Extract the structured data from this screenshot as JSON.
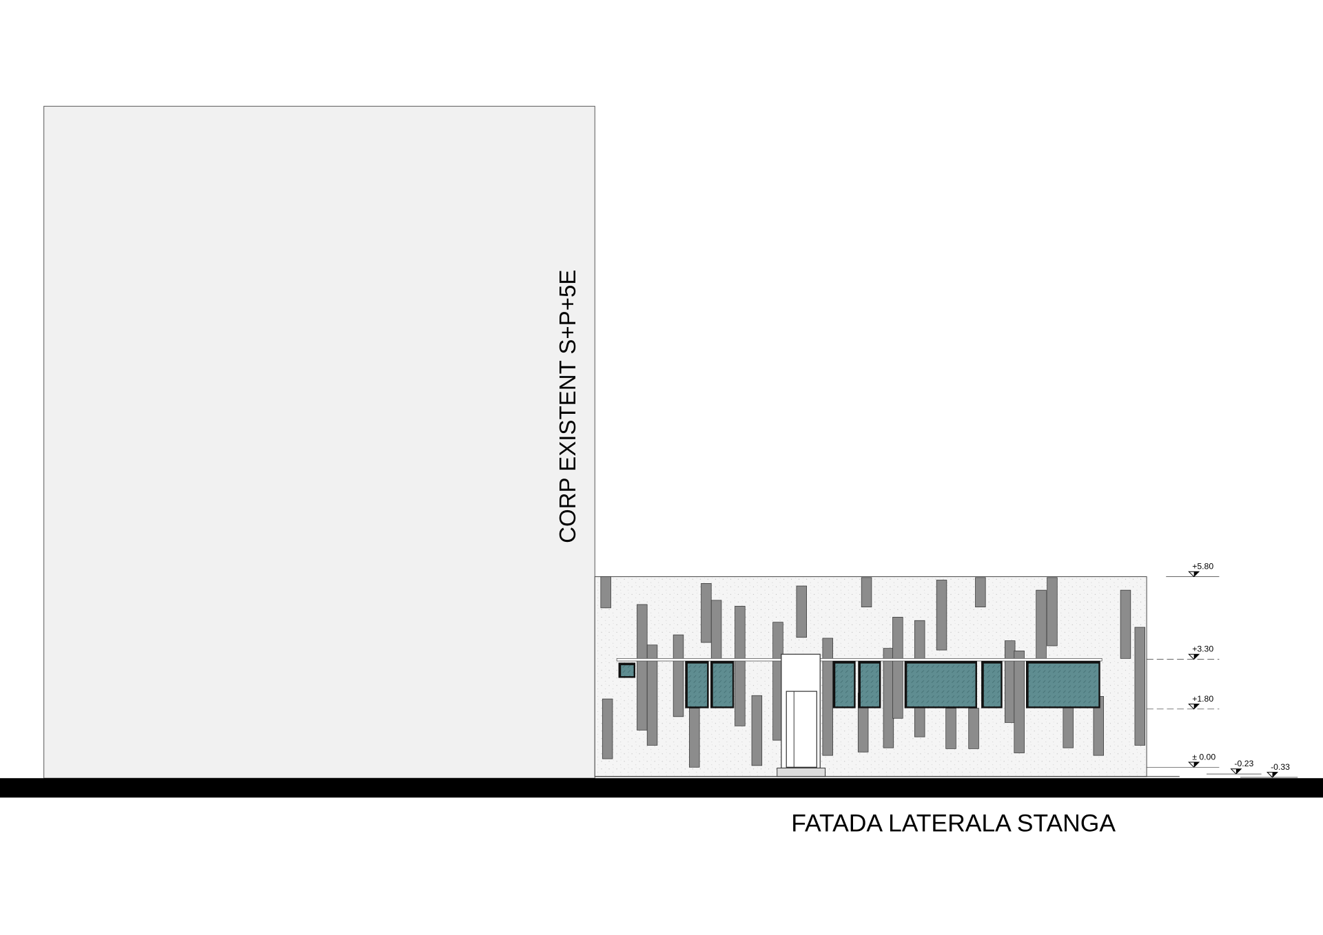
{
  "drawing": {
    "title": "FATADA LATERALA STANGA",
    "existing_building_label": "CORP EXISTENT S+P+5E",
    "levels": [
      "+5.80",
      "+3.30",
      "+1.80",
      "± 0.00",
      "-0.23",
      "-0.33"
    ]
  }
}
